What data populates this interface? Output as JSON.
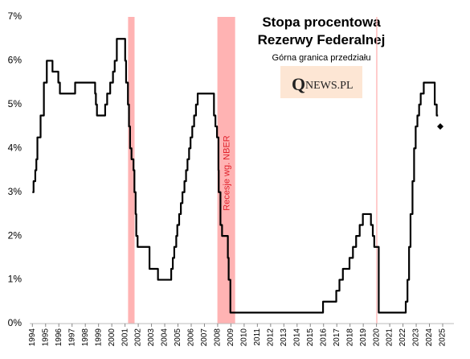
{
  "chart_data": {
    "type": "line",
    "step": true,
    "title": [
      "Stopa procentowa",
      "Rezerwy Federalnej"
    ],
    "subtitle": "Górna granica przedziału",
    "logo": [
      "Q",
      "NEWS.PL"
    ],
    "annotation": "Recesje wg. NBER",
    "color": "#000000",
    "band_color": "#ffb3b3",
    "bands": [
      [
        2001.23,
        2001.72
      ],
      [
        2007.98,
        2009.32
      ],
      [
        2019.98,
        2020.06
      ]
    ],
    "x": [
      1994.0,
      1994.09,
      1994.22,
      1994.3,
      1994.38,
      1994.62,
      1994.87,
      1995.09,
      1995.52,
      1995.96,
      1996.08,
      1997.23,
      1998.74,
      1998.8,
      1998.88,
      1999.5,
      1999.65,
      1999.88,
      2000.09,
      2000.22,
      2000.38,
      2001.01,
      2001.08,
      2001.22,
      2001.3,
      2001.38,
      2001.49,
      2001.64,
      2001.71,
      2001.8,
      2001.85,
      2001.95,
      2002.85,
      2003.49,
      2004.49,
      2004.61,
      2004.72,
      2004.87,
      2004.95,
      2005.09,
      2005.22,
      2005.34,
      2005.49,
      2005.61,
      2005.72,
      2005.84,
      2005.95,
      2006.08,
      2006.22,
      2006.36,
      2006.49,
      2007.72,
      2007.83,
      2007.95,
      2008.06,
      2008.08,
      2008.21,
      2008.33,
      2008.77,
      2008.83,
      2008.96,
      2015.96,
      2016.96,
      2017.2,
      2017.46,
      2017.96,
      2018.22,
      2018.46,
      2018.73,
      2018.97,
      2019.58,
      2019.72,
      2019.83,
      2020.17,
      2022.21,
      2022.34,
      2022.46,
      2022.57,
      2022.72,
      2022.84,
      2022.96,
      2023.09,
      2023.22,
      2023.34,
      2023.57,
      2024.4,
      2024.55,
      2024.65
    ],
    "values": [
      3.0,
      3.25,
      3.5,
      3.75,
      4.25,
      4.75,
      5.5,
      6.0,
      5.75,
      5.5,
      5.25,
      5.5,
      5.25,
      5.0,
      4.75,
      5.0,
      5.25,
      5.5,
      5.75,
      6.0,
      6.5,
      6.0,
      5.5,
      5.0,
      4.5,
      4.0,
      3.75,
      3.5,
      3.0,
      2.5,
      2.0,
      1.75,
      1.25,
      1.0,
      1.25,
      1.5,
      1.75,
      2.0,
      2.25,
      2.5,
      2.75,
      3.0,
      3.25,
      3.5,
      3.75,
      4.0,
      4.25,
      4.5,
      4.75,
      5.0,
      5.25,
      4.75,
      4.5,
      4.25,
      3.5,
      3.0,
      2.25,
      2.0,
      1.5,
      1.0,
      0.25,
      0.5,
      0.75,
      1.0,
      1.25,
      1.5,
      1.75,
      2.0,
      2.25,
      2.5,
      2.25,
      2.0,
      1.75,
      0.25,
      0.5,
      1.0,
      1.75,
      2.5,
      3.25,
      4.0,
      4.5,
      4.75,
      5.0,
      5.25,
      5.5,
      5.0,
      4.75,
      4.75
    ],
    "marker": {
      "x": 2024.82,
      "value": 4.5
    },
    "xlim": [
      1993.8,
      2025.85
    ],
    "xticks": [
      1994,
      1995,
      1996,
      1997,
      1998,
      1999,
      2000,
      2001,
      2002,
      2003,
      2004,
      2005,
      2006,
      2007,
      2008,
      2009,
      2010,
      2011,
      2012,
      2013,
      2014,
      2015,
      2016,
      2017,
      2018,
      2019,
      2020,
      2021,
      2022,
      2023,
      2024,
      2025
    ],
    "ylim": [
      0,
      7
    ],
    "yticks": [
      {
        "value": 0,
        "label": "0%"
      },
      {
        "value": 1,
        "label": "1%"
      },
      {
        "value": 2,
        "label": "2%"
      },
      {
        "value": 3,
        "label": "3%"
      },
      {
        "value": 4,
        "label": "4%"
      },
      {
        "value": 5,
        "label": "5%"
      },
      {
        "value": 6,
        "label": "6%"
      },
      {
        "value": 7,
        "label": "7%"
      }
    ],
    "grid": false
  }
}
